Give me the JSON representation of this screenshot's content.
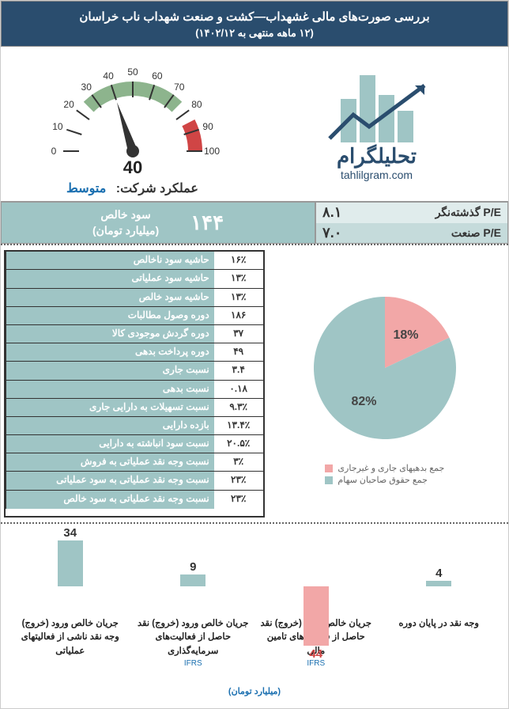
{
  "header": {
    "title": "بررسی صورت‌های مالی غشهداب—کشت و صنعت شهداب ناب خراسان",
    "subtitle": "(۱۲ ماهه منتهی به ۱۴۰۲/۱۲)"
  },
  "logo": {
    "text": "تحلیلگرام",
    "url": "tahlilgram.com",
    "bar_color": "#9fc5c5",
    "line_color": "#2a4d6e"
  },
  "gauge": {
    "min": 0,
    "max": 100,
    "value": 40,
    "ticks": [
      0,
      10,
      20,
      30,
      40,
      50,
      60,
      70,
      80,
      90,
      100
    ],
    "needle_color": "#333333",
    "tick_fontsize": 12,
    "value_fontsize": 22,
    "green_start": 25,
    "green_end": 75,
    "green_color": "#8db48d",
    "red_start": 85,
    "red_end": 100,
    "red_color": "#d04545"
  },
  "performance": {
    "label": "عملکرد شرکت:",
    "value": "متوسط"
  },
  "pe": {
    "green_label_1": "سود خالص",
    "green_label_2": "(میلیارد تومان)",
    "green_value": "۱۴۴",
    "trailing_label": "P/E گذشته‌نگر",
    "trailing_value": "۸.۱",
    "industry_label": "P/E صنعت",
    "industry_value": "۷.۰"
  },
  "metrics": [
    {
      "label": "حاشیه سود ناخالص",
      "value": "۱۶٪"
    },
    {
      "label": "حاشیه سود عملیاتی",
      "value": "۱۳٪"
    },
    {
      "label": "حاشیه سود خالص",
      "value": "۱۳٪"
    },
    {
      "label": "دوره وصول مطالبات",
      "value": "۱۸۶"
    },
    {
      "label": "دوره گردش موجودی کالا",
      "value": "۳۷"
    },
    {
      "label": "دوره پرداخت بدهی",
      "value": "۴۹"
    },
    {
      "label": "نسبت جاری",
      "value": "۳.۴"
    },
    {
      "label": "نسبت بدهی",
      "value": "۰.۱۸"
    },
    {
      "label": "نسبت تسهیلات به دارایی جاری",
      "value": "۹.۳٪"
    },
    {
      "label": "بازده دارایی",
      "value": "۱۳.۴٪"
    },
    {
      "label": "نسبت سود انباشته به دارایی",
      "value": "۲۰.۵٪"
    },
    {
      "label": "نسبت وجه نقد عملیاتی به فروش",
      "value": "۳٪"
    },
    {
      "label": "نسبت وجه نقد عملیاتی به سود عملیاتی",
      "value": "۲۳٪"
    },
    {
      "label": "نسبت وجه نقد عملیاتی به سود خالص",
      "value": "۲۳٪"
    }
  ],
  "pie": {
    "slices": [
      {
        "label": "جمع بدهیهای جاری و غیرجاری",
        "value": 18,
        "color": "#f2a7a7",
        "text": "18%"
      },
      {
        "label": "جمع حقوق صاحبان سهام",
        "value": 82,
        "color": "#9fc5c5",
        "text": "82%"
      }
    ],
    "label_fontsize": 16
  },
  "cashflow": {
    "unit": "(میلیارد تومان)",
    "baseline": 75,
    "scale": 1.7,
    "items": [
      {
        "label": "جریان خالص ورود (خروج) وجه نقد ناشی از فعالیتهای عملیاتی",
        "note": "",
        "value": 34,
        "color": "#9fc5c5",
        "text": "34"
      },
      {
        "label": "جریان خالص ورود (خروج) نقد حاصل از فعالیت‌های سرمایه‌گذاری",
        "note": "IFRS",
        "value": 9,
        "color": "#9fc5c5",
        "text": "9"
      },
      {
        "label": "جریان خالص ورود (خروج) نقد حاصل از فعالیت‌های تامین مالی",
        "note": "IFRS",
        "value": -44,
        "color": "#f2a7a7",
        "text": "44"
      },
      {
        "label": "وجه نقد در پایان دوره",
        "note": "",
        "value": 4,
        "color": "#9fc5c5",
        "text": "4"
      }
    ]
  },
  "colors": {
    "header_bg": "#2a4d6e",
    "teal": "#9fc5c5",
    "pink": "#f2a7a7",
    "blue_text": "#1a6fb0"
  }
}
